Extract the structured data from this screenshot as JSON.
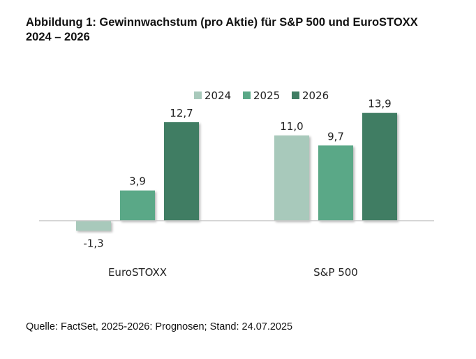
{
  "figure": {
    "title_line1": "Abbildung 1: Gewinnwachstum (pro Aktie) für S&P 500 und EuroSTOXX",
    "title_line2": "2024 – 2026",
    "source": "Quelle: FactSet, 2025-2026: Prognosen; Stand: 24.07.2025"
  },
  "chart_data": {
    "type": "bar",
    "title": "",
    "xlabel": "",
    "ylabel": "",
    "categories": [
      "EuroSTOXX",
      "S&P 500"
    ],
    "series": [
      {
        "name": "2024",
        "values": [
          -1.3,
          11.0
        ],
        "labels": [
          "-1,3",
          "11,0"
        ],
        "color": "#a8c9bb"
      },
      {
        "name": "2025",
        "values": [
          3.9,
          9.7
        ],
        "labels": [
          "3,9",
          "9,7"
        ],
        "color": "#5aa887"
      },
      {
        "name": "2026",
        "values": [
          12.7,
          13.9
        ],
        "labels": [
          "12,7",
          "13,9"
        ],
        "color": "#3f7d63"
      }
    ],
    "ylim": [
      -3,
      16
    ],
    "grid": false,
    "legend": "top-center",
    "axis_color": "#c8c8c8"
  }
}
